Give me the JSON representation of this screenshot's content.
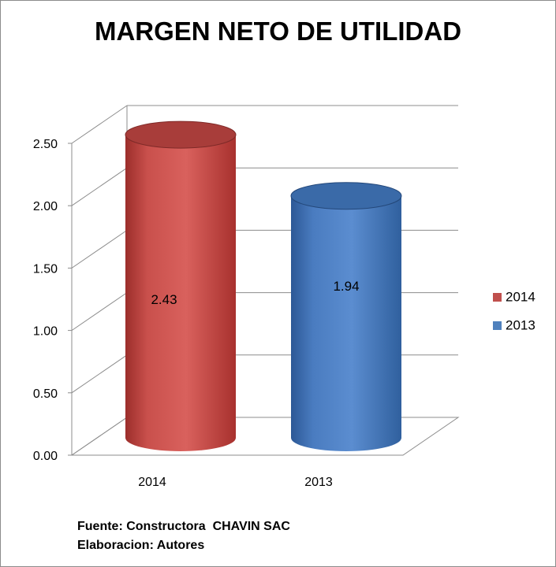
{
  "chart_data": {
    "type": "bar",
    "title": "MARGEN NETO DE UTILIDAD",
    "categories": [
      "2014",
      "2013"
    ],
    "values": [
      2.43,
      1.94
    ],
    "data_labels": [
      "2.43",
      "1.94"
    ],
    "bar_colors": [
      "#c0504d",
      "#4f81bd"
    ],
    "ylim": [
      0,
      2.5
    ],
    "yticks": [
      0,
      0.5,
      1.0,
      1.5,
      2.0,
      2.5
    ],
    "ytick_labels": [
      "0.00",
      "0.50",
      "1.00",
      "1.50",
      "2.00",
      "2.50"
    ],
    "grid": true,
    "legend_position": "right",
    "legend": [
      {
        "label": "2014",
        "color": "#c0504d"
      },
      {
        "label": "2013",
        "color": "#4f81bd"
      }
    ]
  },
  "footer": {
    "source": "Fuente: Constructora  CHAVIN SAC",
    "author": "Elaboracion: Autores"
  }
}
